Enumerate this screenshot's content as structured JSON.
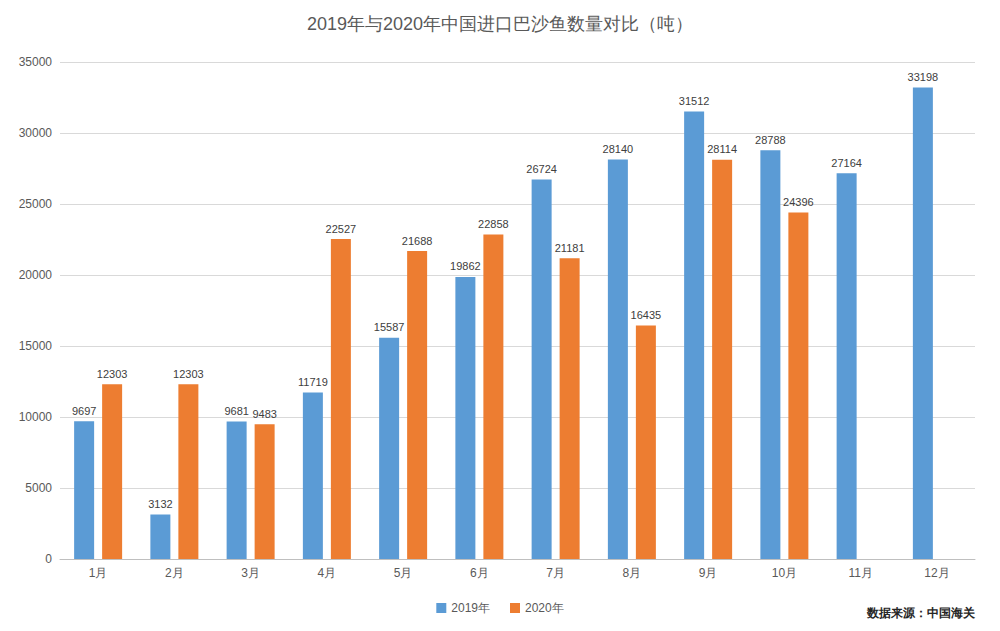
{
  "chart_data": {
    "type": "bar",
    "title": "2019年与2020年中国进口巴沙鱼数量对比（吨）",
    "categories": [
      "1月",
      "2月",
      "3月",
      "4月",
      "5月",
      "6月",
      "7月",
      "8月",
      "9月",
      "10月",
      "11月",
      "12月"
    ],
    "series": [
      {
        "name": "2019年",
        "color": "#5b9bd5",
        "values": [
          9697,
          3132,
          9681,
          11719,
          15587,
          19862,
          26724,
          28140,
          31512,
          28788,
          27164,
          33198
        ]
      },
      {
        "name": "2020年",
        "color": "#ed7d31",
        "values": [
          12303,
          12303,
          9483,
          22527,
          21688,
          22858,
          21181,
          16435,
          28114,
          24396,
          null,
          null
        ]
      }
    ],
    "ylim": [
      0,
      35000
    ],
    "yticks": [
      0,
      5000,
      10000,
      15000,
      20000,
      25000,
      30000,
      35000
    ],
    "grid": true,
    "legend": "bottom",
    "data_labels": true,
    "annotations": [
      "数据来源：中国海关"
    ]
  }
}
